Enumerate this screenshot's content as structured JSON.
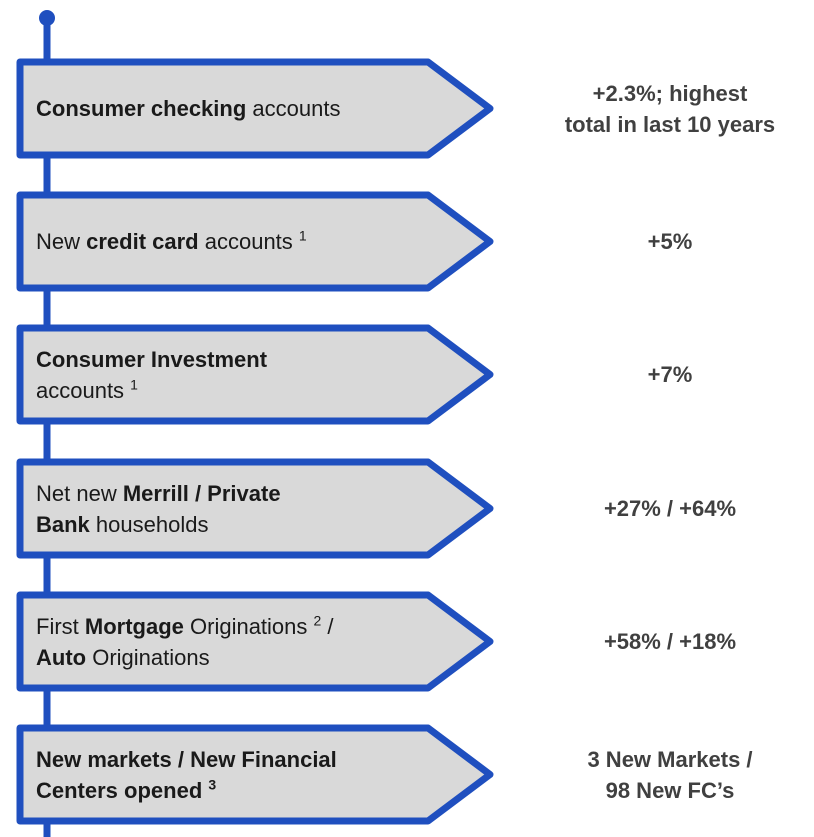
{
  "items": [
    {
      "lines": [
        [
          {
            "text": "Consumer checking",
            "bold": true
          },
          {
            "text": " accounts"
          }
        ]
      ],
      "result": [
        "+2.3%; highest",
        "total in last 10 years"
      ]
    },
    {
      "lines": [
        [
          {
            "text": "New "
          },
          {
            "text": "credit card",
            "bold": true
          },
          {
            "text": " accounts "
          },
          {
            "text": "1",
            "sup": true
          }
        ]
      ],
      "result": [
        "+5%"
      ]
    },
    {
      "lines": [
        [
          {
            "text": "Consumer Investment",
            "bold": true
          }
        ],
        [
          {
            "text": "accounts "
          },
          {
            "text": "1",
            "sup": true
          }
        ]
      ],
      "result": [
        "+7%"
      ]
    },
    {
      "lines": [
        [
          {
            "text": "Net new "
          },
          {
            "text": "Merrill / Private",
            "bold": true
          }
        ],
        [
          {
            "text": "Bank",
            "bold": true
          },
          {
            "text": " households"
          }
        ]
      ],
      "result": [
        "+27% / +64%"
      ]
    },
    {
      "lines": [
        [
          {
            "text": "First "
          },
          {
            "text": "Mortgage",
            "bold": true
          },
          {
            "text": " Originations "
          },
          {
            "text": "2",
            "sup": true
          },
          {
            "text": " /"
          }
        ],
        [
          {
            "text": "Auto",
            "bold": true
          },
          {
            "text": " Originations"
          }
        ]
      ],
      "result": [
        "+58% / +18%"
      ]
    },
    {
      "lines": [
        [
          {
            "text": "New markets / New Financial",
            "bold": true
          }
        ],
        [
          {
            "text": "Centers opened ",
            "bold": true
          },
          {
            "text": "3",
            "bold": true,
            "sup": true
          }
        ]
      ],
      "result": [
        "3 New Markets /",
        "98 New FC’s"
      ]
    }
  ]
}
